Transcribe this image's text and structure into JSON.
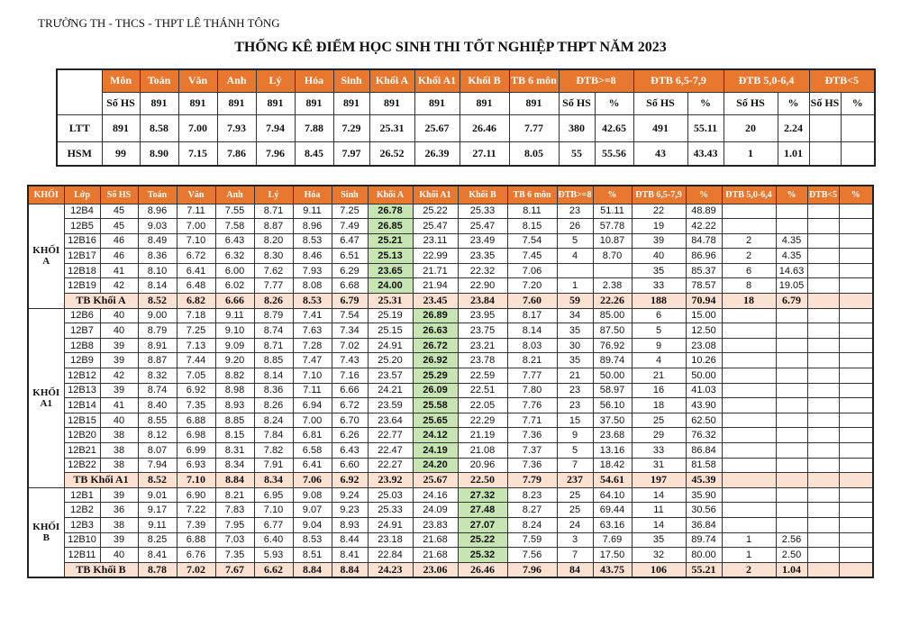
{
  "header": {
    "school": "TRƯỜNG TH - THCS - THPT LÊ THÁNH TÔNG",
    "title": "THỐNG KÊ ĐIỂM HỌC SINH THI TỐT NGHIỆP THPT NĂM 2023"
  },
  "table1": {
    "header": [
      "Môn",
      "Toán",
      "Văn",
      "Anh",
      "Lý",
      "Hóa",
      "Sinh",
      "Khối A",
      "Khối A1",
      "Khối B",
      "TB 6 môn",
      "ĐTB>=8",
      "ĐTB 6,5-7,9",
      "ĐTB 5,0-6,4",
      "ĐTB<5"
    ],
    "rows": [
      [
        "Số HS",
        "891",
        "891",
        "891",
        "891",
        "891",
        "891",
        "891",
        "891",
        "891",
        "891",
        "Số HS",
        "%",
        "Số HS",
        "%",
        "Số HS",
        "%",
        "Số HS",
        "%"
      ],
      [
        "LTT",
        "891",
        "8.58",
        "7.00",
        "7.93",
        "7.94",
        "7.88",
        "7.29",
        "25.31",
        "25.67",
        "26.46",
        "7.77",
        "380",
        "42.65",
        "491",
        "55.11",
        "20",
        "2.24"
      ],
      [
        "HSM",
        "99",
        "8.90",
        "7.15",
        "7.86",
        "7.96",
        "8.45",
        "7.97",
        "26.52",
        "26.39",
        "27.11",
        "8.05",
        "55",
        "55.56",
        "43",
        "43.43",
        "1",
        "1.01"
      ]
    ]
  },
  "table2": {
    "header": [
      "KHỐI",
      "Lớp",
      "Số HS",
      "Toán",
      "Văn",
      "Anh",
      "Lý",
      "Hóa",
      "Sinh",
      "Khối A",
      "Khối A1",
      "Khối B",
      "TB 6 môn",
      "ĐTB>=8",
      "%",
      "ĐTB 6,5-7,9",
      "%",
      "ĐTB 5,0-6,4",
      "%",
      "ĐTB<5",
      "%"
    ],
    "groups": [
      {
        "label": "KHỐI A",
        "rows": [
          [
            "12B4",
            "45",
            "8.96",
            "7.11",
            "7.55",
            "8.71",
            "9.11",
            "7.25",
            "26.78",
            "25.22",
            "25.33",
            "8.11",
            "23",
            "51.11",
            "22",
            "48.89"
          ],
          [
            "12B5",
            "45",
            "9.03",
            "7.00",
            "7.58",
            "8.87",
            "8.96",
            "7.49",
            "26.85",
            "25.47",
            "25.47",
            "8.15",
            "26",
            "57.78",
            "19",
            "42.22"
          ],
          [
            "12B16",
            "46",
            "8.49",
            "7.10",
            "6.43",
            "8.20",
            "8.53",
            "6.47",
            "25.21",
            "23.11",
            "23.49",
            "7.54",
            "5",
            "10.87",
            "39",
            "84.78",
            "2",
            "4.35"
          ],
          [
            "12B17",
            "46",
            "8.36",
            "6.72",
            "6.32",
            "8.30",
            "8.46",
            "6.51",
            "25.13",
            "22.99",
            "23.35",
            "7.45",
            "4",
            "8.70",
            "40",
            "86.96",
            "2",
            "4.35"
          ],
          [
            "12B18",
            "41",
            "8.10",
            "6.41",
            "6.00",
            "7.62",
            "7.93",
            "6.29",
            "23.65",
            "21.71",
            "22.32",
            "7.06",
            null,
            null,
            "35",
            "85.37",
            "6",
            "14.63"
          ],
          [
            "12B19",
            "42",
            "8.14",
            "6.48",
            "6.02",
            "7.77",
            "8.08",
            "6.68",
            "24.00",
            "21.94",
            "22.90",
            "7.20",
            "1",
            "2.38",
            "33",
            "78.57",
            "8",
            "19.05"
          ]
        ],
        "total": [
          "TB Khối A",
          "8.52",
          "6.82",
          "6.66",
          "8.26",
          "8.53",
          "6.79",
          "25.31",
          "23.45",
          "23.84",
          "7.60",
          "59",
          "22.26",
          "188",
          "70.94",
          "18",
          "6.79"
        ]
      },
      {
        "label": "KHỐI A1",
        "rows": [
          [
            "12B6",
            "40",
            "9.00",
            "7.18",
            "9.11",
            "8.79",
            "7.41",
            "7.54",
            "25.19",
            "26.89",
            "23.95",
            "8.17",
            "34",
            "85.00",
            "6",
            "15.00"
          ],
          [
            "12B7",
            "40",
            "8.79",
            "7.25",
            "9.10",
            "8.74",
            "7.63",
            "7.34",
            "25.15",
            "26.63",
            "23.75",
            "8.14",
            "35",
            "87.50",
            "5",
            "12.50"
          ],
          [
            "12B8",
            "39",
            "8.91",
            "7.13",
            "9.09",
            "8.71",
            "7.28",
            "7.02",
            "24.91",
            "26.72",
            "23.21",
            "8.03",
            "30",
            "76.92",
            "9",
            "23.08"
          ],
          [
            "12B9",
            "39",
            "8.87",
            "7.44",
            "9.20",
            "8.85",
            "7.47",
            "7.43",
            "25.20",
            "26.92",
            "23.78",
            "8.21",
            "35",
            "89.74",
            "4",
            "10.26"
          ],
          [
            "12B12",
            "42",
            "8.32",
            "7.05",
            "8.82",
            "8.14",
            "7.10",
            "7.16",
            "23.57",
            "25.29",
            "22.59",
            "7.77",
            "21",
            "50.00",
            "21",
            "50.00"
          ],
          [
            "12B13",
            "39",
            "8.74",
            "6.92",
            "8.98",
            "8.36",
            "7.11",
            "6.66",
            "24.21",
            "26.09",
            "22.51",
            "7.80",
            "23",
            "58.97",
            "16",
            "41.03"
          ],
          [
            "12B14",
            "41",
            "8.40",
            "7.35",
            "8.93",
            "8.26",
            "6.94",
            "6.72",
            "23.59",
            "25.58",
            "22.05",
            "7.76",
            "23",
            "56.10",
            "18",
            "43.90"
          ],
          [
            "12B15",
            "40",
            "8.55",
            "6.88",
            "8.85",
            "8.24",
            "7.00",
            "6.70",
            "23.64",
            "25.65",
            "22.29",
            "7.71",
            "15",
            "37.50",
            "25",
            "62.50"
          ],
          [
            "12B20",
            "38",
            "8.12",
            "6.98",
            "8.15",
            "7.84",
            "6.81",
            "6.26",
            "22.77",
            "24.12",
            "21.19",
            "7.36",
            "9",
            "23.68",
            "29",
            "76.32"
          ],
          [
            "12B21",
            "38",
            "8.07",
            "6.99",
            "8.31",
            "7.82",
            "6.58",
            "6.43",
            "22.47",
            "24.19",
            "21.08",
            "7.37",
            "5",
            "13.16",
            "33",
            "86.84"
          ],
          [
            "12B22",
            "38",
            "7.94",
            "6.93",
            "8.34",
            "7.91",
            "6.41",
            "6.60",
            "22.27",
            "24.20",
            "20.96",
            "7.36",
            "7",
            "18.42",
            "31",
            "81.58"
          ]
        ],
        "total": [
          "TB Khối A1",
          "8.52",
          "7.10",
          "8.84",
          "8.34",
          "7.06",
          "6.92",
          "23.92",
          "25.67",
          "22.50",
          "7.79",
          "237",
          "54.61",
          "197",
          "45.39"
        ]
      },
      {
        "label": "KHỐI B",
        "rows": [
          [
            "12B1",
            "39",
            "9.01",
            "6.90",
            "8.21",
            "6.95",
            "9.08",
            "9.24",
            "25.03",
            "24.16",
            "27.32",
            "8.23",
            "25",
            "64.10",
            "14",
            "35.90"
          ],
          [
            "12B2",
            "36",
            "9.17",
            "7.22",
            "7.83",
            "7.10",
            "9.07",
            "9.23",
            "25.33",
            "24.09",
            "27.48",
            "8.27",
            "25",
            "69.44",
            "11",
            "30.56"
          ],
          [
            "12B3",
            "38",
            "9.11",
            "7.39",
            "7.95",
            "6.77",
            "9.04",
            "8.93",
            "24.91",
            "23.83",
            "27.07",
            "8.24",
            "24",
            "63.16",
            "14",
            "36.84"
          ],
          [
            "12B10",
            "39",
            "8.25",
            "6.88",
            "7.03",
            "6.40",
            "8.53",
            "8.44",
            "23.18",
            "21.68",
            "25.22",
            "7.59",
            "3",
            "7.69",
            "35",
            "89.74",
            "1",
            "2.56"
          ],
          [
            "12B11",
            "40",
            "8.41",
            "6.76",
            "7.35",
            "5.93",
            "8.51",
            "8.41",
            "22.84",
            "21.68",
            "25.32",
            "7.56",
            "7",
            "17.50",
            "32",
            "80.00",
            "1",
            "2.50"
          ]
        ],
        "total": [
          "TB Khối B",
          "8.78",
          "7.02",
          "7.67",
          "6.62",
          "8.84",
          "8.84",
          "24.23",
          "23.06",
          "26.46",
          "7.96",
          "84",
          "43.75",
          "106",
          "55.21",
          "2",
          "1.04"
        ]
      }
    ]
  }
}
